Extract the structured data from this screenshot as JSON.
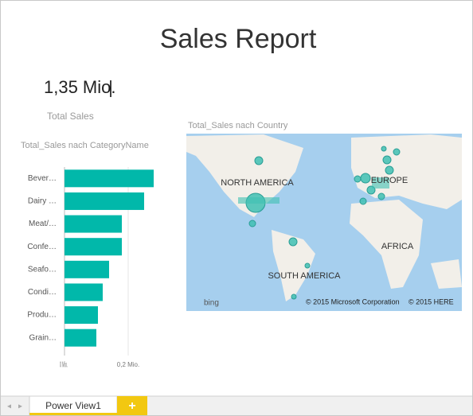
{
  "header": {
    "title": "Sales Report"
  },
  "card": {
    "value": "1,35 Mio.",
    "label": "Total Sales"
  },
  "chart_data": {
    "type": "hbar",
    "title": "Total_Sales nach CategoryName",
    "categories": [
      "Bever…",
      "Dairy …",
      "Meat/…",
      "Confe…",
      "Seafo…",
      "Condi…",
      "Produ…",
      "Grain…"
    ],
    "values": [
      0.28,
      0.25,
      0.18,
      0.18,
      0.14,
      0.12,
      0.105,
      0.1
    ],
    "color": "#01b8aa",
    "xlim": [
      0,
      0.3
    ],
    "xticks": [
      {
        "value": 0,
        "label": "0 Mio."
      },
      {
        "value": 0.2,
        "label": "0,2 Mio."
      }
    ],
    "grid": true
  },
  "map": {
    "title": "Total_Sales nach Country",
    "labels": [
      "NORTH AMERICA",
      "EUROPE",
      "AFRICA",
      "SOUTH AMERICA"
    ],
    "logo": "bing",
    "copyright": [
      "© 2015 Microsoft Corporation",
      "© 2015 HERE"
    ]
  },
  "tabs": {
    "sheet": "Power View1",
    "add": "+"
  }
}
